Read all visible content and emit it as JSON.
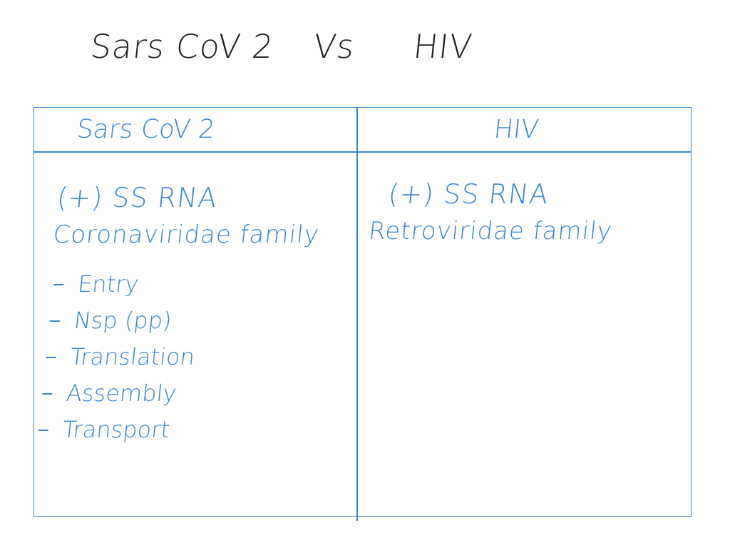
{
  "heading": {
    "left": "Sars CoV 2",
    "vs": "Vs",
    "right": "HIV"
  },
  "table": {
    "headers": [
      "Sars CoV 2",
      "HIV"
    ],
    "sars_cov2": {
      "genome": "(+) SS RNA",
      "family": "Coronaviridae family",
      "items": [
        "Entry",
        "Nsp (pp)",
        "Translation",
        "Assembly",
        "Transport"
      ]
    },
    "hiv": {
      "genome": "(+) SS RNA",
      "family": "Retroviridae family"
    }
  },
  "colors": {
    "ink_black": "#1f1f1f",
    "ink_blue": "#3b86d1",
    "background": "#ffffff"
  }
}
